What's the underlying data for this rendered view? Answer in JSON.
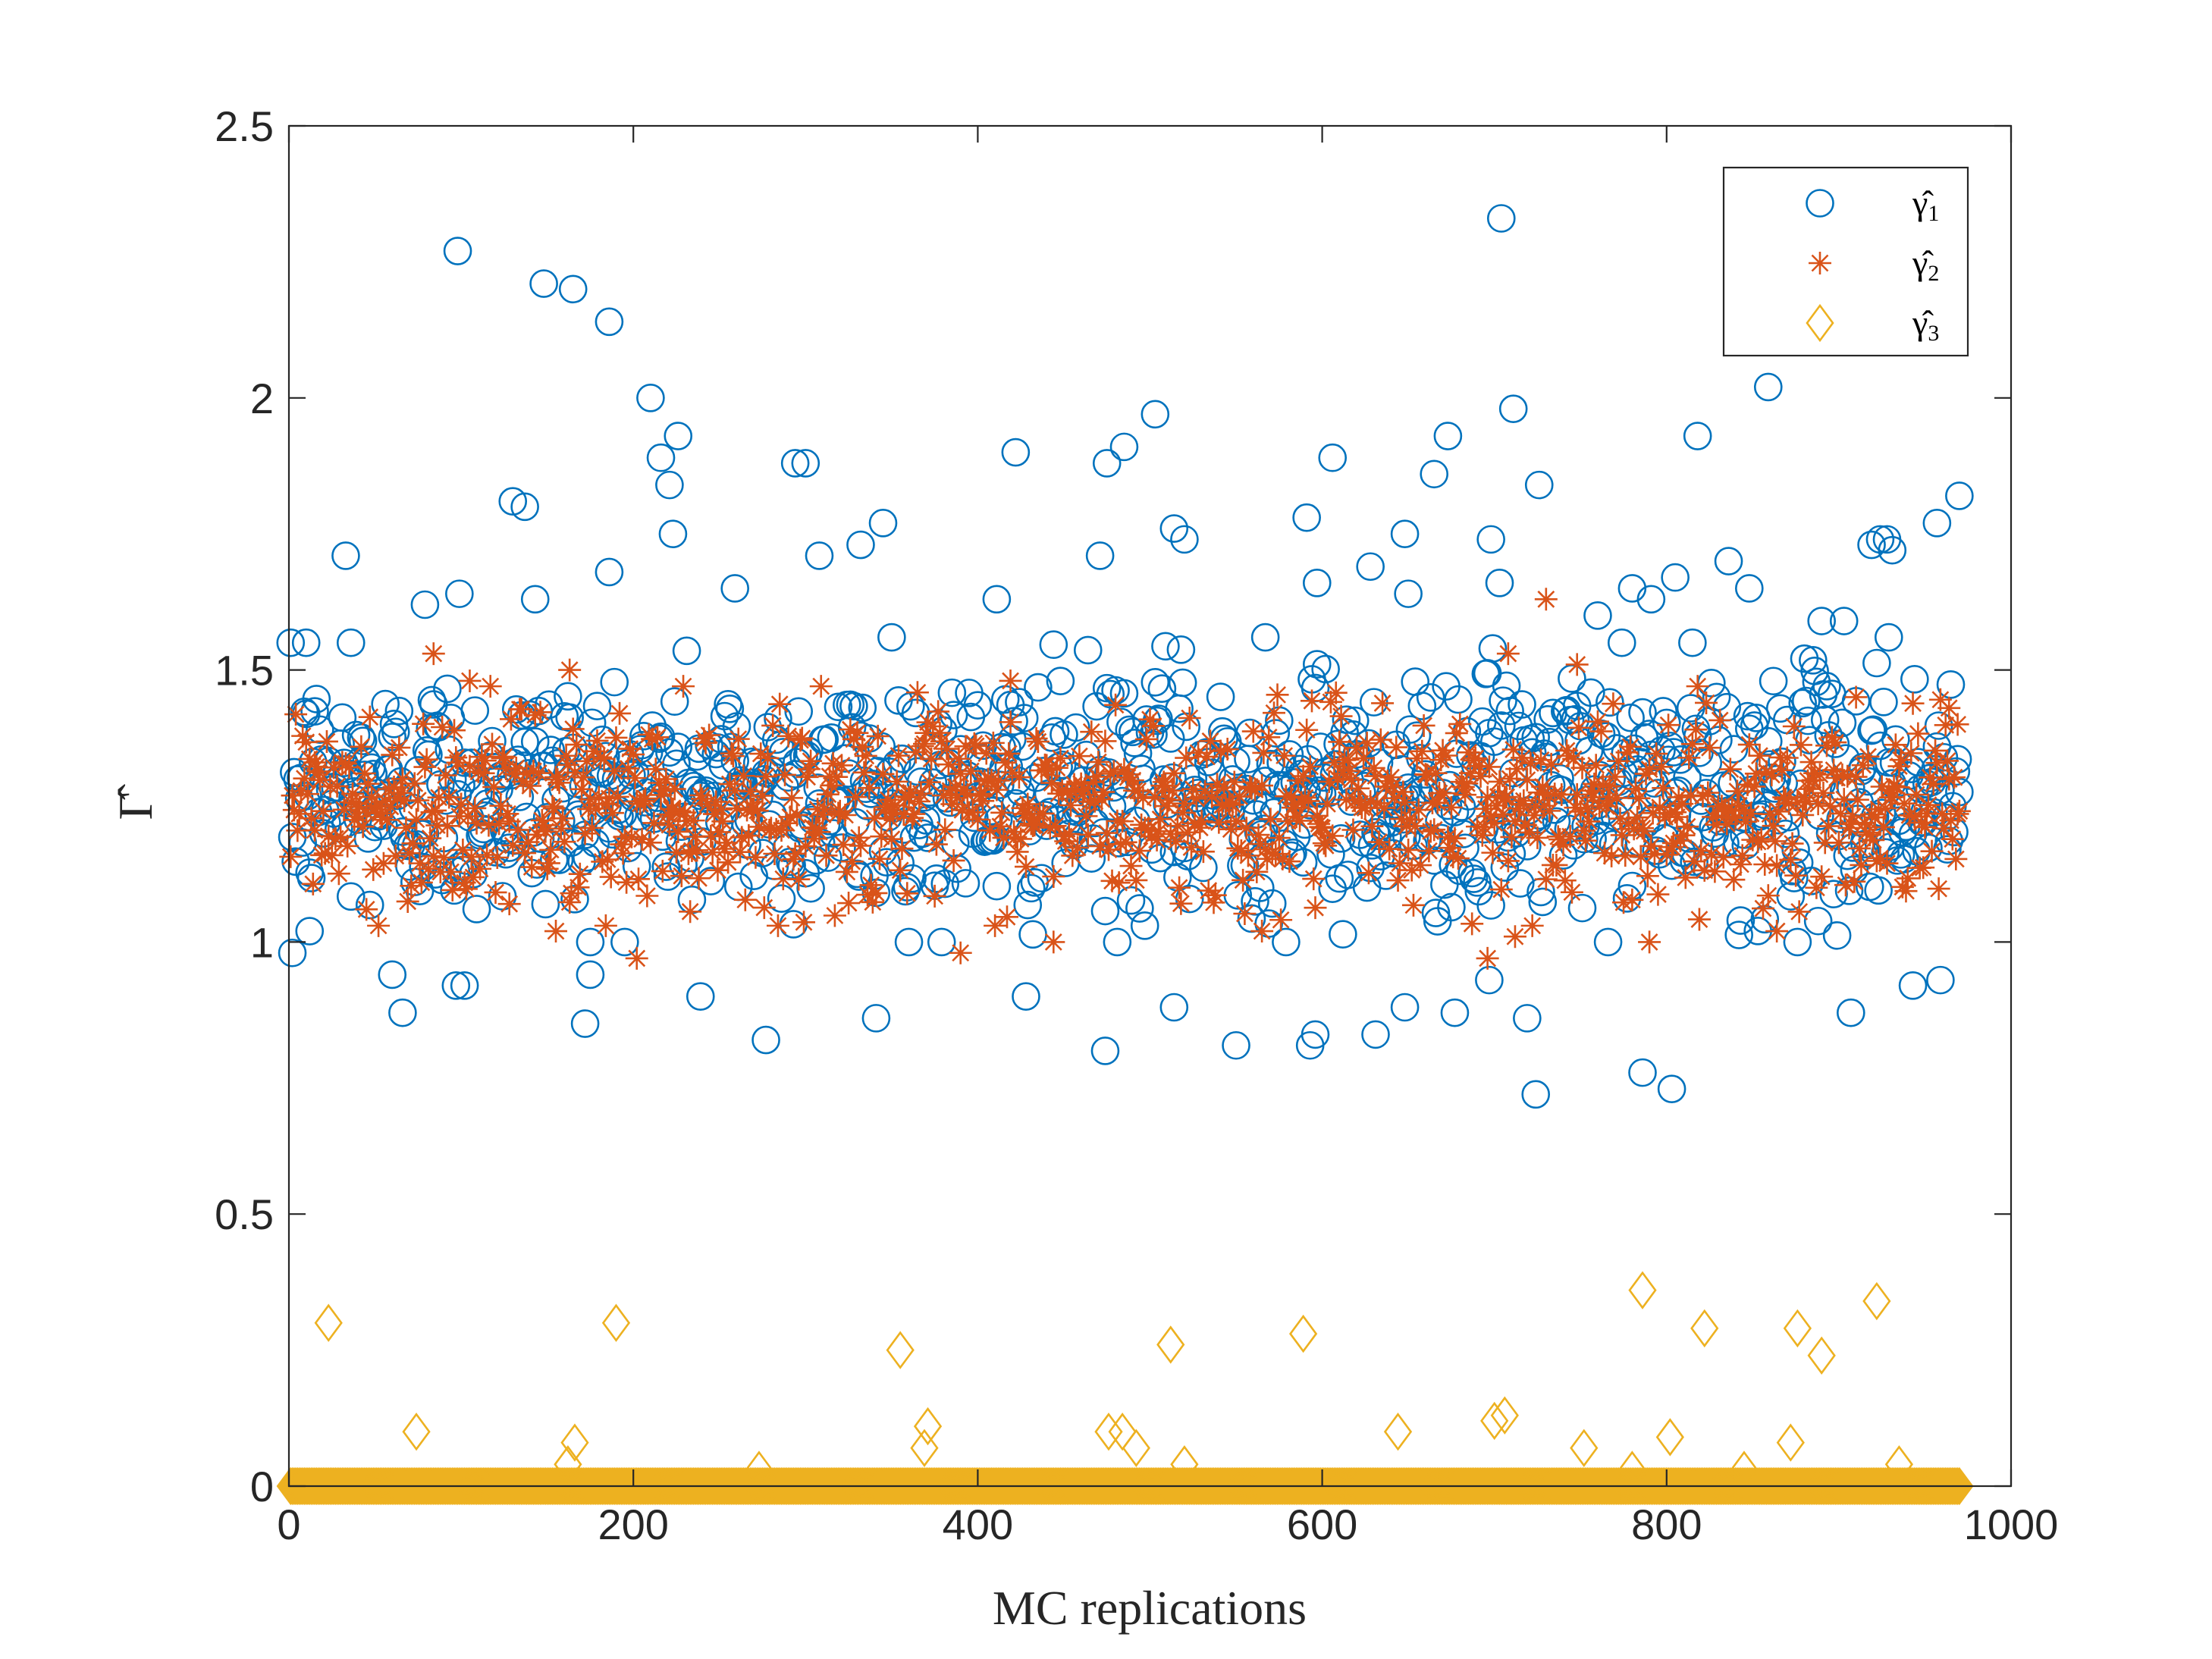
{
  "chart_data": {
    "type": "scatter",
    "title": "",
    "xlabel": "MC replications",
    "ylabel": "Γ̂",
    "xlim": [
      0,
      1000
    ],
    "ylim": [
      0,
      2.5
    ],
    "xticks": [
      "0",
      "200",
      "400",
      "600",
      "800",
      "1000"
    ],
    "yticks": [
      "0",
      "0.5",
      "1",
      "1.5",
      "2",
      "2.5"
    ],
    "grid": false,
    "legend_position": "top-right",
    "n_replications": 970,
    "series": [
      {
        "name": "γ̂1",
        "symbol": "γ̂",
        "subscript": "1",
        "marker": "circle",
        "color": "#0072BD",
        "typical_range": [
          1.05,
          1.5
        ],
        "notable_points": [
          [
            98,
            2.27
          ],
          [
            148,
            2.21
          ],
          [
            165,
            2.2
          ],
          [
            186,
            2.14
          ],
          [
            210,
            2.0
          ],
          [
            226,
            1.93
          ],
          [
            216,
            1.89
          ],
          [
            221,
            1.84
          ],
          [
            130,
            1.81
          ],
          [
            137,
            1.8
          ],
          [
            223,
            1.75
          ],
          [
            33,
            1.71
          ],
          [
            300,
            1.88
          ],
          [
            294,
            1.88
          ],
          [
            308,
            1.71
          ],
          [
            332,
            1.73
          ],
          [
            345,
            1.77
          ],
          [
            422,
            1.9
          ],
          [
            503,
            1.97
          ],
          [
            475,
            1.88
          ],
          [
            485,
            1.91
          ],
          [
            471,
            1.71
          ],
          [
            514,
            1.76
          ],
          [
            520,
            1.74
          ],
          [
            606,
            1.89
          ],
          [
            591,
            1.78
          ],
          [
            648,
            1.75
          ],
          [
            665,
            1.86
          ],
          [
            673,
            1.93
          ],
          [
            698,
            1.74
          ],
          [
            704,
            2.33
          ],
          [
            711,
            1.98
          ],
          [
            726,
            1.84
          ],
          [
            859,
            2.02
          ],
          [
            818,
            1.93
          ],
          [
            924,
            1.74
          ],
          [
            928,
            1.74
          ],
          [
            931,
            1.72
          ],
          [
            970,
            1.82
          ],
          [
            957,
            1.77
          ],
          [
            919,
            1.73
          ],
          [
            60,
            0.94
          ],
          [
            66,
            0.87
          ],
          [
            97,
            0.92
          ],
          [
            102,
            0.92
          ],
          [
            172,
            0.85
          ],
          [
            175,
            0.94
          ],
          [
            239,
            0.9
          ],
          [
            277,
            0.82
          ],
          [
            341,
            0.86
          ],
          [
            428,
            0.9
          ],
          [
            474,
            0.8
          ],
          [
            514,
            0.88
          ],
          [
            550,
            0.81
          ],
          [
            593,
            0.81
          ],
          [
            596,
            0.83
          ],
          [
            631,
            0.83
          ],
          [
            648,
            0.88
          ],
          [
            677,
            0.87
          ],
          [
            697,
            0.93
          ],
          [
            719,
            0.86
          ],
          [
            724,
            0.72
          ],
          [
            786,
            0.76
          ],
          [
            803,
            0.73
          ],
          [
            907,
            0.87
          ],
          [
            943,
            0.92
          ],
          [
            959,
            0.93
          ],
          [
            2,
            0.98
          ],
          [
            12,
            1.02
          ],
          [
            10,
            1.55
          ],
          [
            36,
            1.55
          ],
          [
            79,
            1.62
          ],
          [
            99,
            1.64
          ],
          [
            143,
            1.63
          ],
          [
            186,
            1.68
          ],
          [
            259,
            1.65
          ],
          [
            350,
            1.56
          ],
          [
            411,
            1.63
          ],
          [
            567,
            1.56
          ],
          [
            597,
            1.66
          ],
          [
            628,
            1.69
          ],
          [
            650,
            1.64
          ],
          [
            703,
            1.66
          ],
          [
            760,
            1.6
          ],
          [
            780,
            1.65
          ],
          [
            791,
            1.63
          ],
          [
            805,
            1.67
          ],
          [
            836,
            1.7
          ],
          [
            848,
            1.65
          ],
          [
            890,
            1.59
          ],
          [
            903,
            1.59
          ],
          [
            929,
            1.56
          ]
        ]
      },
      {
        "name": "γ̂2",
        "symbol": "γ̂",
        "subscript": "2",
        "marker": "asterisk",
        "color": "#D95319",
        "typical_range": [
          1.08,
          1.42
        ],
        "notable_points": [
          [
            84,
            1.53
          ],
          [
            163,
            1.5
          ],
          [
            105,
            1.48
          ],
          [
            419,
            1.48
          ],
          [
            708,
            1.53
          ],
          [
            730,
            1.63
          ],
          [
            748,
            1.51
          ],
          [
            910,
            1.45
          ],
          [
            964,
            1.43
          ],
          [
            969,
            1.4
          ],
          [
            202,
            0.97
          ],
          [
            696,
            0.97
          ],
          [
            712,
            1.01
          ],
          [
            790,
            1.0
          ],
          [
            444,
            1.0
          ],
          [
            390,
            0.98
          ],
          [
            864,
            1.02
          ],
          [
            565,
            1.02
          ],
          [
            15,
            1.33
          ],
          [
            45,
            1.06
          ],
          [
            128,
            1.07
          ],
          [
            155,
            1.02
          ],
          [
            184,
            1.03
          ]
        ]
      },
      {
        "name": "γ̂3",
        "symbol": "γ̂",
        "subscript": "3",
        "marker": "diamond",
        "color": "#EDB120",
        "typical_value": 0,
        "notable_points": [
          [
            23,
            0.3
          ],
          [
            190,
            0.3
          ],
          [
            355,
            0.25
          ],
          [
            371,
            0.11
          ],
          [
            369,
            0.07
          ],
          [
            74,
            0.1
          ],
          [
            166,
            0.08
          ],
          [
            162,
            0.04
          ],
          [
            476,
            0.1
          ],
          [
            484,
            0.1
          ],
          [
            492,
            0.07
          ],
          [
            512,
            0.26
          ],
          [
            589,
            0.28
          ],
          [
            644,
            0.1
          ],
          [
            700,
            0.12
          ],
          [
            706,
            0.13
          ],
          [
            752,
            0.07
          ],
          [
            786,
            0.36
          ],
          [
            802,
            0.09
          ],
          [
            822,
            0.29
          ],
          [
            872,
            0.08
          ],
          [
            876,
            0.29
          ],
          [
            890,
            0.24
          ],
          [
            922,
            0.34
          ],
          [
            935,
            0.04
          ],
          [
            520,
            0.04
          ],
          [
            273,
            0.03
          ],
          [
            845,
            0.03
          ],
          [
            780,
            0.03
          ]
        ]
      }
    ]
  }
}
